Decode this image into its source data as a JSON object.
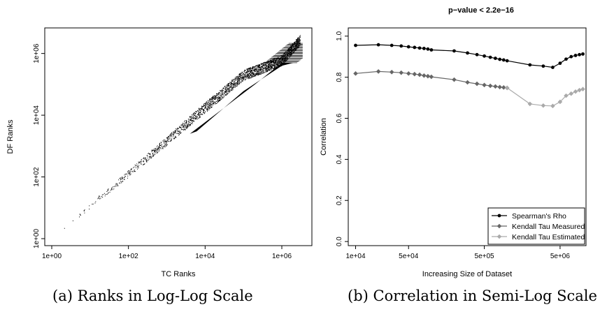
{
  "captions": {
    "a": "(a) Ranks in Log-Log Scale",
    "b": "(b) Correlation in Semi-Log Scale"
  },
  "chart_data": [
    {
      "type": "scatter",
      "title": "",
      "xlabel": "TC Ranks",
      "ylabel": "DF Ranks",
      "x_scale": "log",
      "y_scale": "log",
      "xlim": [
        1,
        4000000
      ],
      "ylim": [
        1,
        4000000
      ],
      "x_ticks": [
        "1e+00",
        "1e+02",
        "1e+04",
        "1e+06"
      ],
      "y_ticks": [
        "1e+00",
        "1e+02",
        "1e+04",
        "1e+06"
      ],
      "grid": false,
      "color": "#000000",
      "trend": {
        "x": [
          1,
          10,
          100,
          1000,
          10000,
          100000,
          1000000,
          3000000
        ],
        "y": [
          1,
          12,
          130,
          1500,
          18000,
          200000,
          600000,
          2800000
        ]
      }
    },
    {
      "type": "line",
      "title": "p−value < 2.2e−16",
      "xlabel": "Increasing Size of Dataset",
      "ylabel": "Correlation",
      "x_scale": "log",
      "xlim": [
        8000,
        11000000
      ],
      "ylim": [
        -0.02,
        1.04
      ],
      "x_ticks": [
        "1e+04",
        "5e+04",
        "5e+05",
        "5e+06"
      ],
      "y_ticks": [
        "0.0",
        "0.2",
        "0.4",
        "0.6",
        "0.8",
        "1.0"
      ],
      "grid": false,
      "legend_position": "bottom-right",
      "series": [
        {
          "name": "Spearman's Rho",
          "color": "#000000",
          "marker": "circle",
          "x": [
            10000,
            20000,
            30000,
            40000,
            50000,
            60000,
            70000,
            80000,
            90000,
            100000,
            200000,
            300000,
            400000,
            500000,
            600000,
            700000,
            800000,
            900000,
            1000000,
            2000000,
            3000000,
            4000000,
            5000000,
            6000000,
            7000000,
            8000000,
            9000000,
            10000000
          ],
          "y": [
            0.955,
            0.958,
            0.955,
            0.952,
            0.948,
            0.945,
            0.942,
            0.94,
            0.937,
            0.933,
            0.928,
            0.918,
            0.91,
            0.903,
            0.897,
            0.892,
            0.887,
            0.884,
            0.88,
            0.86,
            0.854,
            0.848,
            0.868,
            0.888,
            0.9,
            0.906,
            0.91,
            0.913
          ]
        },
        {
          "name": "Kendall Tau Measured",
          "color": "#666666",
          "marker": "diamond",
          "x": [
            10000,
            20000,
            30000,
            40000,
            50000,
            60000,
            70000,
            80000,
            90000,
            100000,
            200000,
            300000,
            400000,
            500000,
            600000,
            700000,
            800000,
            900000,
            1000000
          ],
          "y": [
            0.818,
            0.828,
            0.825,
            0.822,
            0.818,
            0.815,
            0.812,
            0.808,
            0.805,
            0.802,
            0.788,
            0.775,
            0.768,
            0.762,
            0.758,
            0.755,
            0.752,
            0.75,
            0.748
          ]
        },
        {
          "name": "Kendall Tau Estimated",
          "color": "#aaaaaa",
          "marker": "diamond",
          "x": [
            1000000,
            2000000,
            3000000,
            4000000,
            5000000,
            6000000,
            7000000,
            8000000,
            9000000,
            10000000
          ],
          "y": [
            0.748,
            0.67,
            0.662,
            0.66,
            0.68,
            0.71,
            0.72,
            0.73,
            0.737,
            0.742
          ]
        }
      ]
    }
  ]
}
